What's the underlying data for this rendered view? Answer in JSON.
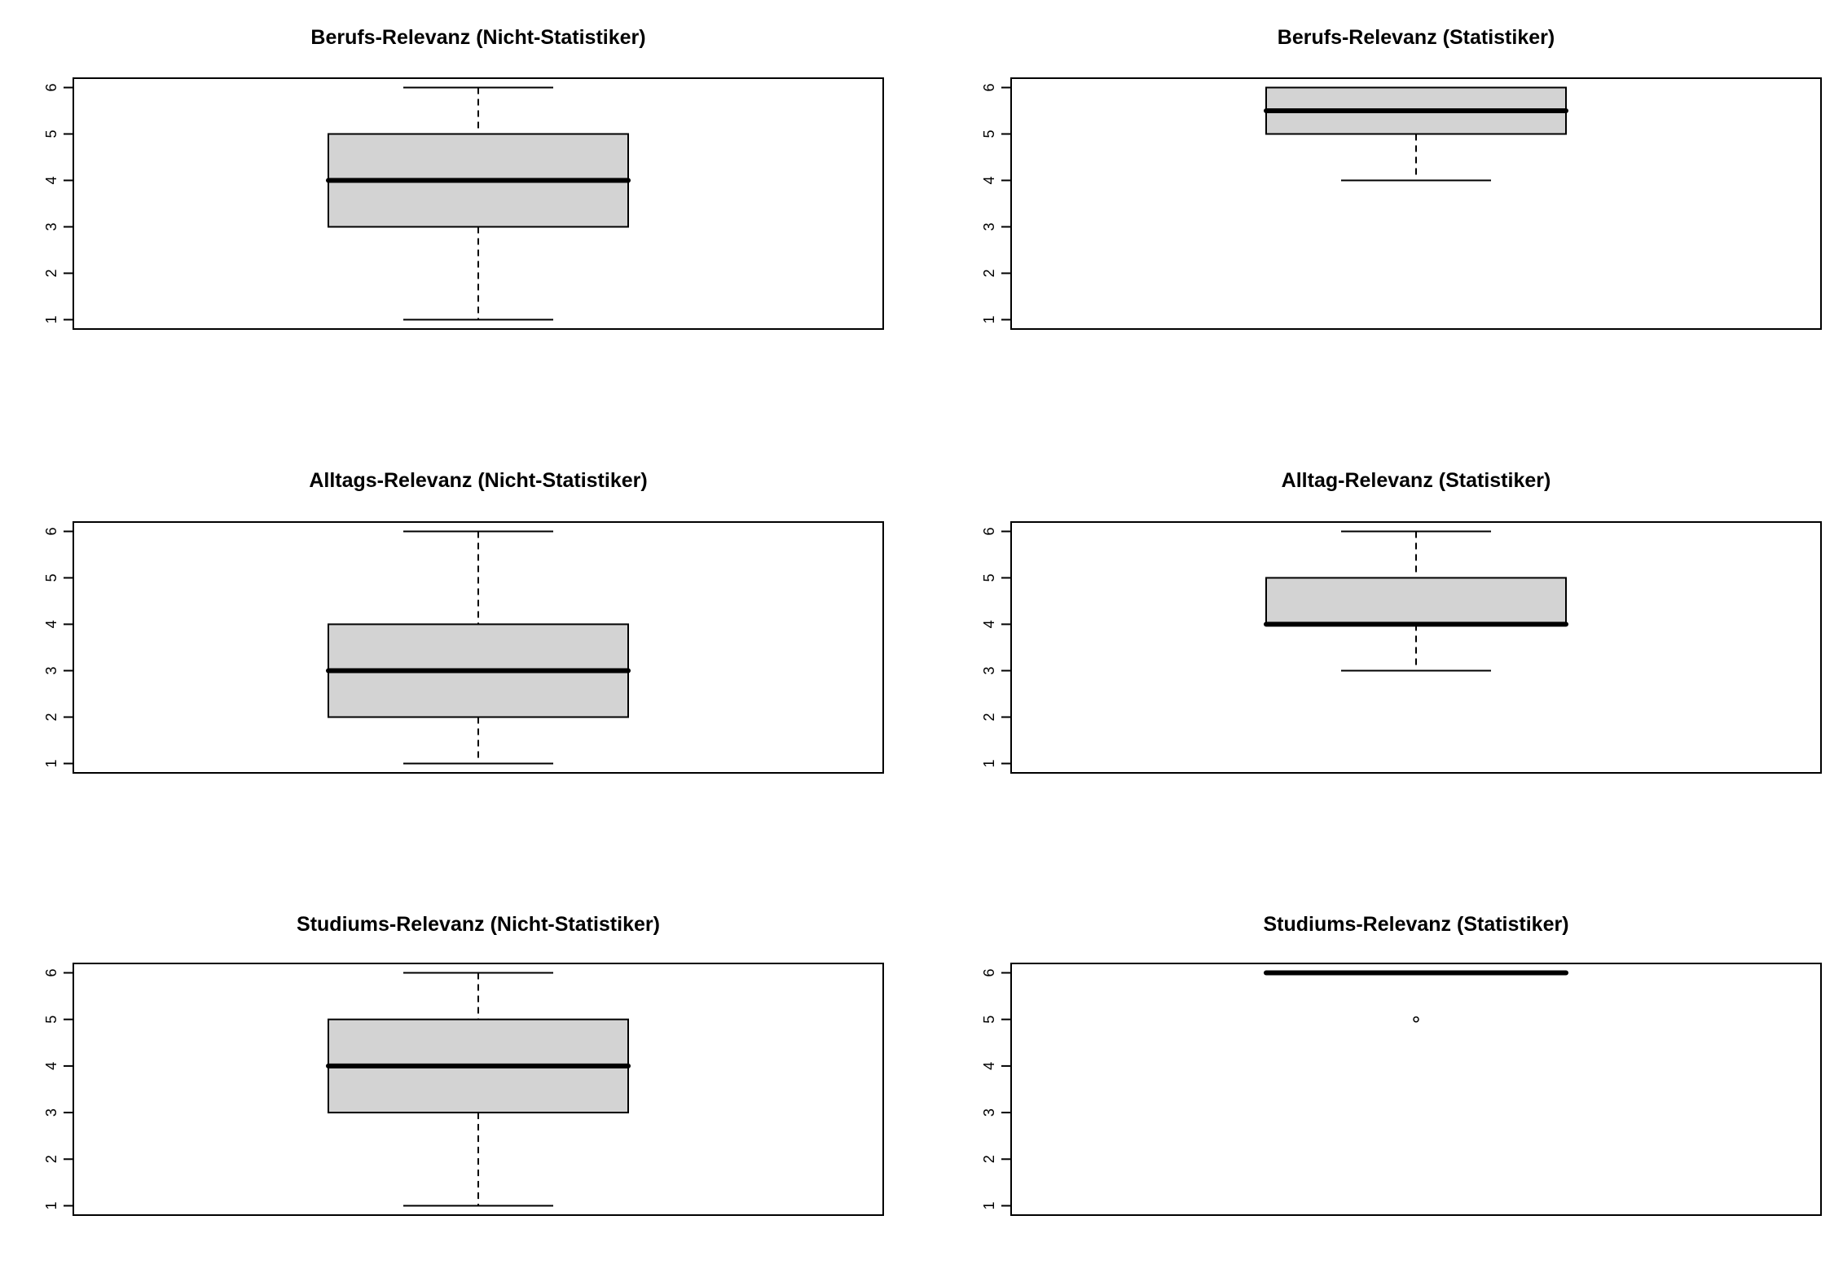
{
  "chart_data": [
    {
      "type": "boxplot",
      "title": "Berufs-Relevanz (Nicht-Statistiker)",
      "ylim": [
        1,
        6
      ],
      "yticks": [
        "1",
        "2",
        "3",
        "4",
        "5",
        "6"
      ],
      "box": {
        "min": 1,
        "q1": 3,
        "median": 4,
        "q3": 5,
        "max": 6
      },
      "outliers": [],
      "fill_color": "#d3d3d3"
    },
    {
      "type": "boxplot",
      "title": "Berufs-Relevanz (Statistiker)",
      "ylim": [
        1,
        6
      ],
      "yticks": [
        "1",
        "2",
        "3",
        "4",
        "5",
        "6"
      ],
      "box": {
        "min": 4,
        "q1": 5,
        "median": 5.5,
        "q3": 6,
        "max": 6
      },
      "outliers": [],
      "fill_color": "#d3d3d3"
    },
    {
      "type": "boxplot",
      "title": "Alltags-Relevanz (Nicht-Statistiker)",
      "ylim": [
        1,
        6
      ],
      "yticks": [
        "1",
        "2",
        "3",
        "4",
        "5",
        "6"
      ],
      "box": {
        "min": 1,
        "q1": 2,
        "median": 3,
        "q3": 4,
        "max": 6
      },
      "outliers": [],
      "fill_color": "#d3d3d3"
    },
    {
      "type": "boxplot",
      "title": "Alltag-Relevanz (Statistiker)",
      "ylim": [
        1,
        6
      ],
      "yticks": [
        "1",
        "2",
        "3",
        "4",
        "5",
        "6"
      ],
      "box": {
        "min": 3,
        "q1": 4,
        "median": 4,
        "q3": 5,
        "max": 6
      },
      "outliers": [],
      "fill_color": "#d3d3d3"
    },
    {
      "type": "boxplot",
      "title": "Studiums-Relevanz (Nicht-Statistiker)",
      "ylim": [
        1,
        6
      ],
      "yticks": [
        "1",
        "2",
        "3",
        "4",
        "5",
        "6"
      ],
      "box": {
        "min": 1,
        "q1": 3,
        "median": 4,
        "q3": 5,
        "max": 6
      },
      "outliers": [],
      "fill_color": "#d3d3d3"
    },
    {
      "type": "boxplot",
      "title": "Studiums-Relevanz (Statistiker)",
      "ylim": [
        1,
        6
      ],
      "yticks": [
        "1",
        "2",
        "3",
        "4",
        "5",
        "6"
      ],
      "box": {
        "min": 6,
        "q1": 6,
        "median": 6,
        "q3": 6,
        "max": 6
      },
      "outliers": [
        5
      ],
      "fill_color": "#d3d3d3"
    }
  ]
}
